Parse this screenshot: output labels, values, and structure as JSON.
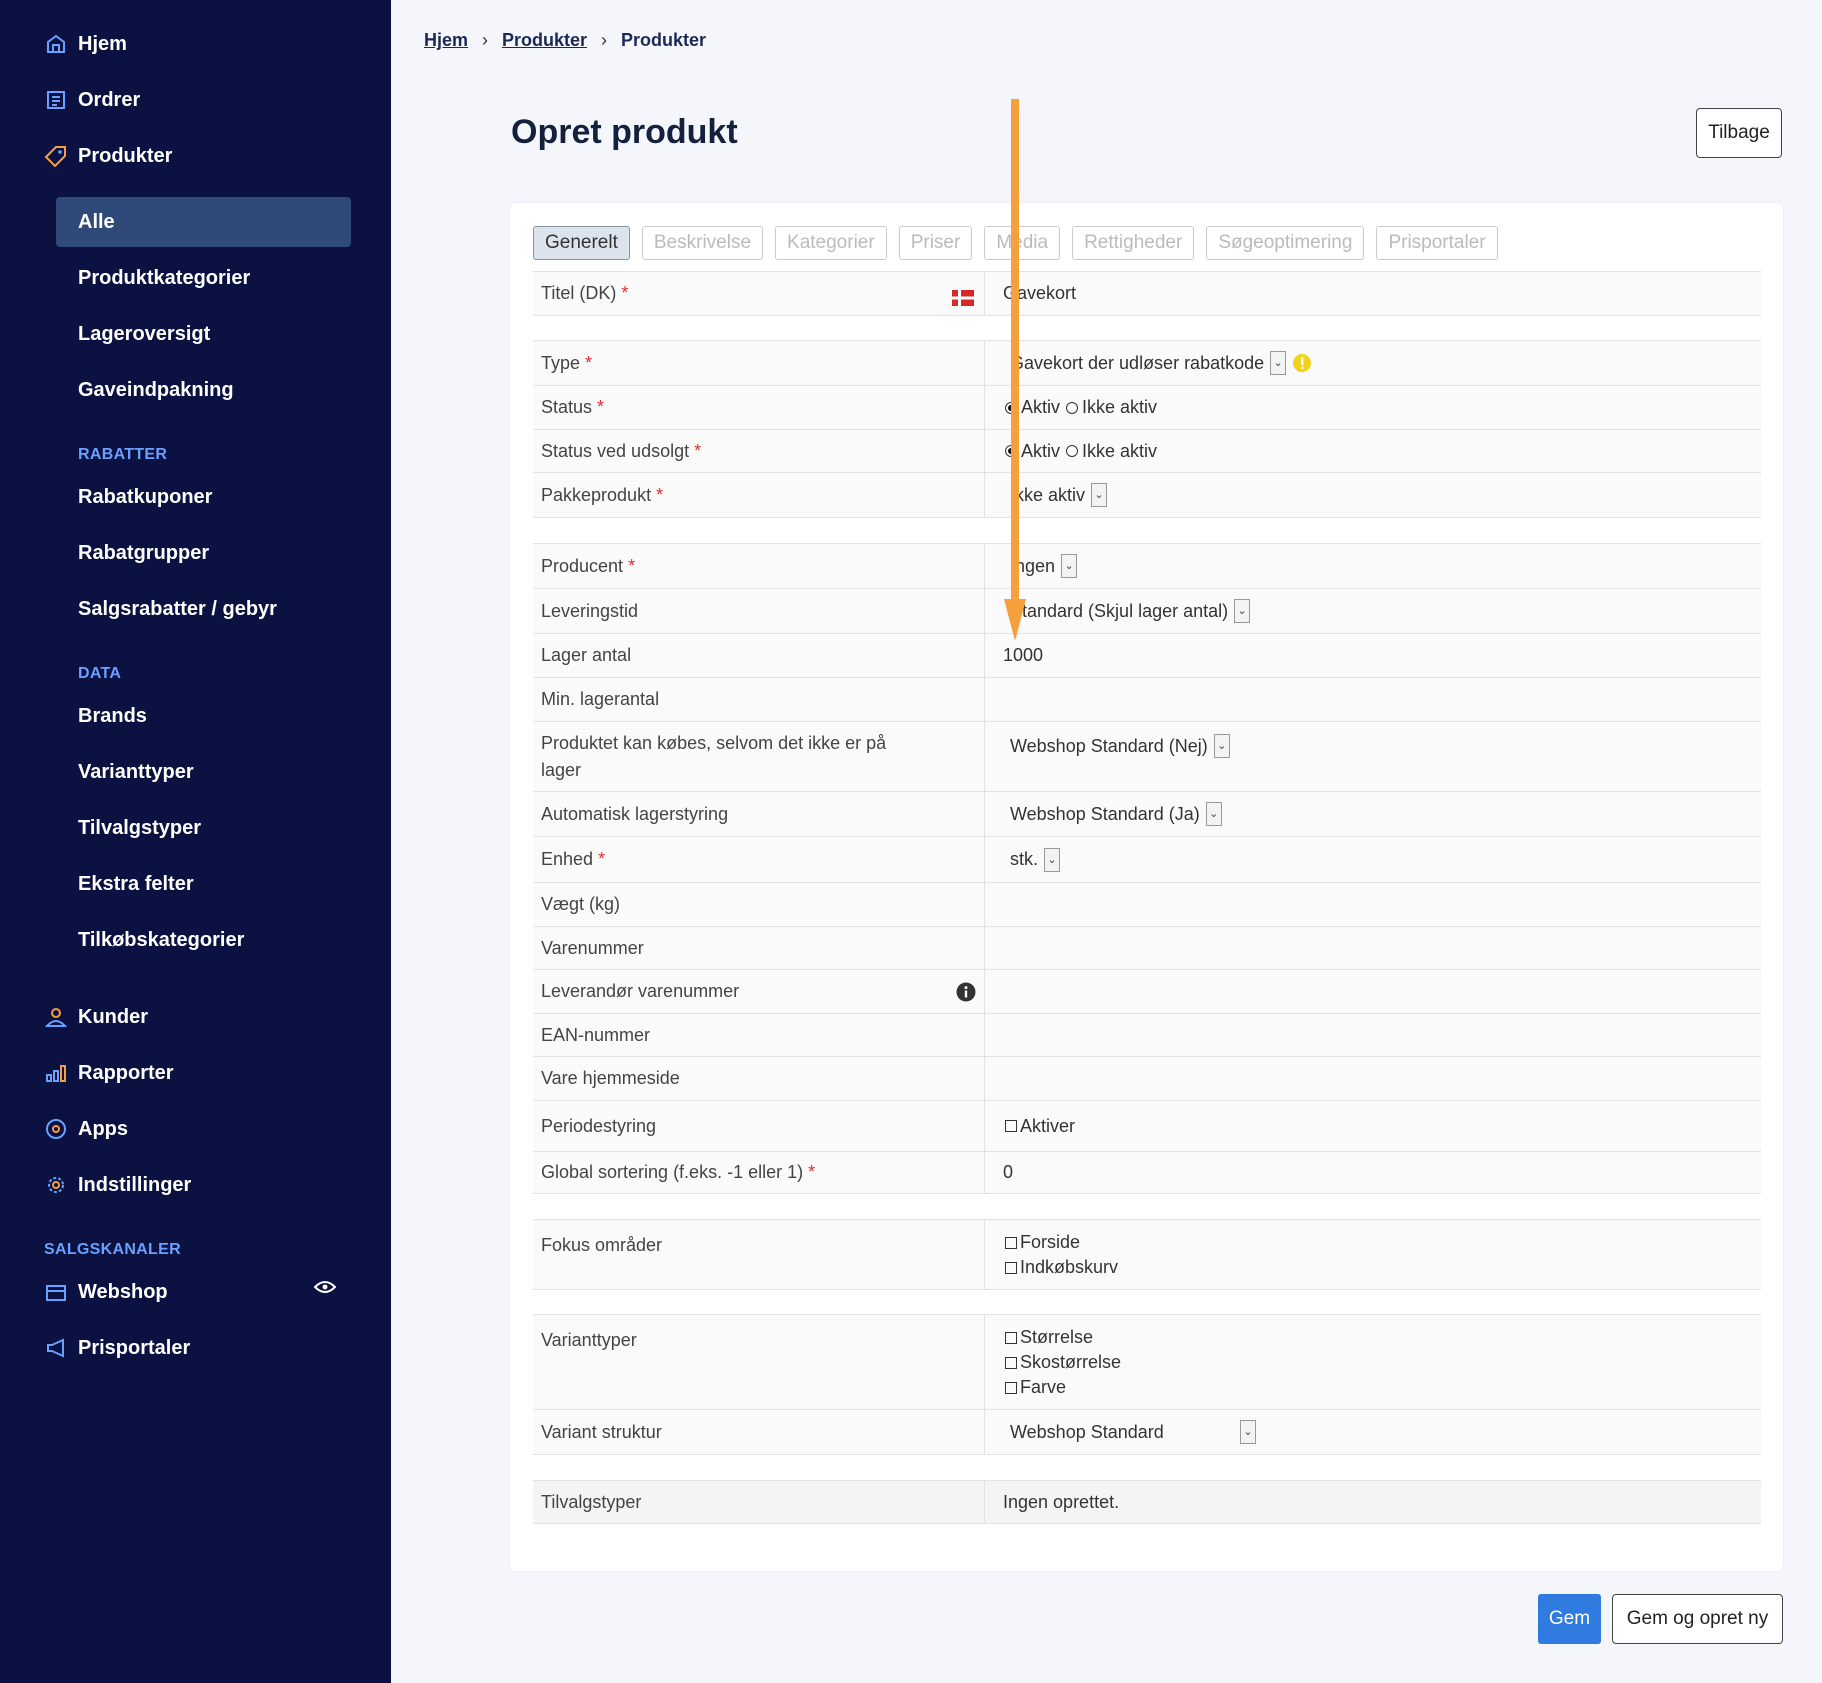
{
  "sidebar": {
    "nav": [
      {
        "label": "Hjem",
        "icon": "home-icon"
      },
      {
        "label": "Ordrer",
        "icon": "orders-icon"
      },
      {
        "label": "Produkter",
        "icon": "tag-icon"
      }
    ],
    "products_sub": [
      "Alle",
      "Produktkategorier",
      "Lageroversigt",
      "Gaveindpakning"
    ],
    "rabatter_head": "RABATTER",
    "rabatter": [
      "Rabatkuponer",
      "Rabatgrupper",
      "Salgsrabatter / gebyr"
    ],
    "data_head": "DATA",
    "data": [
      "Brands",
      "Varianttyper",
      "Tilvalgstyper",
      "Ekstra felter",
      "Tilkøbskategorier"
    ],
    "nav2": [
      {
        "label": "Kunder",
        "icon": "user-icon"
      },
      {
        "label": "Rapporter",
        "icon": "chart-icon"
      },
      {
        "label": "Apps",
        "icon": "apps-icon"
      },
      {
        "label": "Indstillinger",
        "icon": "gear-icon"
      }
    ],
    "salgskanaler_head": "SALGSKANALER",
    "channels": [
      {
        "label": "Webshop",
        "icon": "shop-icon"
      },
      {
        "label": "Prisportaler",
        "icon": "megaphone-icon"
      }
    ]
  },
  "breadcrumb": [
    "Hjem",
    "Produkter",
    "Produkter"
  ],
  "title": "Opret produkt",
  "back_label": "Tilbage",
  "tabs": [
    "Generelt",
    "Beskrivelse",
    "Kategorier",
    "Priser",
    "Media",
    "Rettigheder",
    "Søgeoptimering",
    "Prisportaler"
  ],
  "form": {
    "titel_label": "Titel (DK)",
    "titel_value": "Gavekort",
    "type_label": "Type",
    "type_value": "Gavekort der udløser rabatkode",
    "status_label": "Status",
    "aktiv": "Aktiv",
    "ikke_aktiv": "Ikke aktiv",
    "status_udsolgt_label": "Status ved udsolgt",
    "pakke_label": "Pakkeprodukt",
    "pakke_value": "Ikke aktiv",
    "producent_label": "Producent",
    "producent_value": "Ingen",
    "levering_label": "Leveringstid",
    "levering_value": "Standard (Skjul lager antal)",
    "lager_label": "Lager antal",
    "lager_value": "1000",
    "minlager_label": "Min. lagerantal",
    "kobes_label": "Produktet kan købes, selvom det ikke er på lager",
    "kobes_value": "Webshop Standard (Nej)",
    "auto_label": "Automatisk lagerstyring",
    "auto_value": "Webshop Standard (Ja)",
    "enhed_label": "Enhed",
    "enhed_value": "stk.",
    "vaegt_label": "Vægt (kg)",
    "varenr_label": "Varenummer",
    "levvarenr_label": "Leverandør varenummer",
    "ean_label": "EAN-nummer",
    "hjemmeside_label": "Vare hjemmeside",
    "periode_label": "Periodestyring",
    "periode_value": "Aktiver",
    "sort_label": "Global sortering (f.eks. -1 eller 1)",
    "sort_value": "0",
    "fokus_label": "Fokus områder",
    "fokus_options": [
      "Forside",
      "Indkøbskurv"
    ],
    "variant_label": "Varianttyper",
    "variant_options": [
      "Størrelse",
      "Skostørrelse",
      "Farve"
    ],
    "struktur_label": "Variant struktur",
    "struktur_value": "Webshop Standard",
    "tilvalg_label": "Tilvalgstyper",
    "tilvalg_value": "Ingen oprettet."
  },
  "buttons": {
    "save": "Gem",
    "save_new": "Gem og opret ny"
  },
  "colors": {
    "sidebar": "#0b1140",
    "accent": "#2f7be0",
    "arrow": "#f5a03c"
  }
}
